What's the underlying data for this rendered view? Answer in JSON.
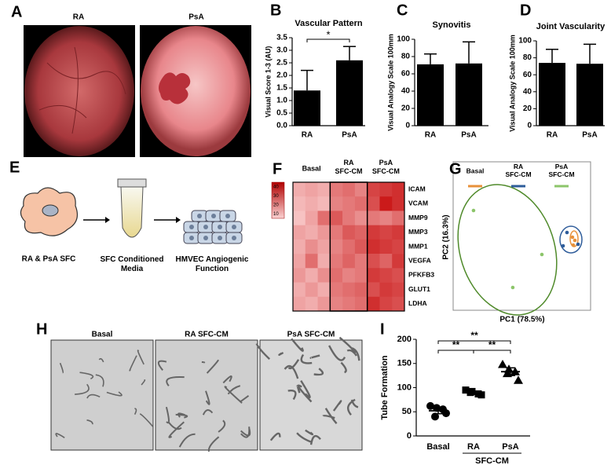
{
  "panel_labels": [
    "A",
    "B",
    "C",
    "D",
    "E",
    "F",
    "G",
    "H",
    "I"
  ],
  "panel_a": {
    "images": [
      "RA",
      "PsA"
    ]
  },
  "panel_e": {
    "steps": [
      "RA & PsA SFC",
      "SFC Conditioned\nMedia",
      "HMVEC Angiogenic\nFunction"
    ]
  },
  "panel_h": {
    "images": [
      "Basal",
      "RA SFC-CM",
      "PsA SFC-CM"
    ]
  },
  "chart_data": [
    {
      "type": "bar",
      "title": "Vascular Pattern",
      "y_label": "Visual Score 1-3 (AU)",
      "categories": [
        "RA",
        "PsA"
      ],
      "values": [
        1.4,
        2.6
      ],
      "errors": [
        0.8,
        0.55
      ],
      "color": "#000000",
      "ylim": [
        0,
        3.5
      ],
      "yticks": [
        {
          "value": 0,
          "label": "0.0"
        },
        {
          "value": 0.5,
          "label": "0.5"
        },
        {
          "value": 1,
          "label": "1.0"
        },
        {
          "value": 1.5,
          "label": "1.5"
        },
        {
          "value": 2,
          "label": "2.0"
        },
        {
          "value": 2.5,
          "label": "2.5"
        },
        {
          "value": 3,
          "label": "3.0"
        },
        {
          "value": 3.5,
          "label": "3.5"
        }
      ],
      "significance": [
        "*"
      ]
    },
    {
      "type": "bar",
      "title": "Synovitis",
      "y_label": "Visual Analogy Scale 100mm",
      "categories": [
        "RA",
        "PsA"
      ],
      "values": [
        71,
        72
      ],
      "errors": [
        12,
        25
      ],
      "color": "#000000",
      "ylim": [
        0,
        100
      ],
      "yticks": [
        0,
        20,
        40,
        60,
        80,
        100
      ]
    },
    {
      "type": "bar",
      "title": "Joint Vascularity",
      "y_label": "Visual Analogy Scale 100mm",
      "categories": [
        "RA",
        "PsA"
      ],
      "values": [
        74,
        73
      ],
      "errors": [
        16,
        23
      ],
      "color": "#000000",
      "ylim": [
        0,
        100
      ],
      "yticks": [
        0,
        20,
        40,
        60,
        80,
        100
      ]
    },
    {
      "type": "heatmap",
      "groups": [
        "Basal",
        "RA\nSFC-CM",
        "PsA\nSFC-CM"
      ],
      "rows": [
        "ICAM",
        "VCAM",
        "MMP9",
        "MMP3",
        "MMP1",
        "VEGFA",
        "PFKFB3",
        "GLUT1",
        "LDHA"
      ],
      "values": [
        [
          12,
          14,
          12,
          22,
          24,
          20,
          32,
          34,
          36
        ],
        [
          10,
          12,
          10,
          20,
          22,
          24,
          30,
          40,
          36
        ],
        [
          8,
          14,
          24,
          28,
          22,
          18,
          22,
          20,
          24
        ],
        [
          14,
          12,
          16,
          22,
          28,
          26,
          34,
          32,
          34
        ],
        [
          12,
          18,
          14,
          20,
          24,
          28,
          36,
          34,
          32
        ],
        [
          14,
          24,
          12,
          22,
          26,
          22,
          30,
          26,
          34
        ],
        [
          16,
          12,
          18,
          24,
          20,
          22,
          34,
          32,
          30
        ],
        [
          12,
          16,
          12,
          22,
          24,
          26,
          30,
          34,
          32
        ],
        [
          14,
          12,
          16,
          20,
          22,
          24,
          36,
          32,
          30
        ]
      ],
      "zlim": [
        5,
        45
      ],
      "colorbar_ticks": [
        40,
        30,
        20,
        10
      ],
      "colors": [
        "#fbd2d2",
        "#c40000"
      ]
    },
    {
      "type": "scatter",
      "x_label": "PC1 (78.5%)",
      "y_label": "PC2 (16.3%)",
      "xlim": [
        -5,
        5
      ],
      "ylim": [
        -3,
        3
      ],
      "series": [
        {
          "name": "Basal",
          "color": "#e8913a",
          "x": [
            3.76,
            3.94,
            3.82
          ],
          "y": [
            0.72,
            0.56,
            0.32
          ]
        },
        {
          "name": "RA\nSFC-CM",
          "color": "#2e5c9a",
          "x": [
            3.06,
            3.35,
            4.18
          ],
          "y": [
            0.28,
            0.96,
            0.36
          ]
        },
        {
          "name": "PsA\nSFC-CM",
          "color": "#8cc56a",
          "x": [
            -3.65,
            1.47,
            -0.71
          ],
          "y": [
            2.08,
            -0.16,
            -1.84
          ]
        }
      ]
    },
    {
      "type": "dot",
      "y_label": "Tube Formation",
      "categories": [
        "Basal",
        "RA",
        "PsA"
      ],
      "group_label": "SFC-CM",
      "values": [
        [
          62,
          55,
          40,
          47,
          58
        ],
        [
          95,
          87,
          90,
          85,
          92
        ],
        [
          148,
          133,
          129,
          115,
          138
        ]
      ],
      "means": [
        52,
        90,
        133
      ],
      "errors": [
        6,
        3,
        8
      ],
      "ylim": [
        0,
        200
      ],
      "yticks": [
        0,
        50,
        100,
        150,
        200
      ],
      "significance": [
        "**",
        "**",
        "**"
      ]
    }
  ]
}
